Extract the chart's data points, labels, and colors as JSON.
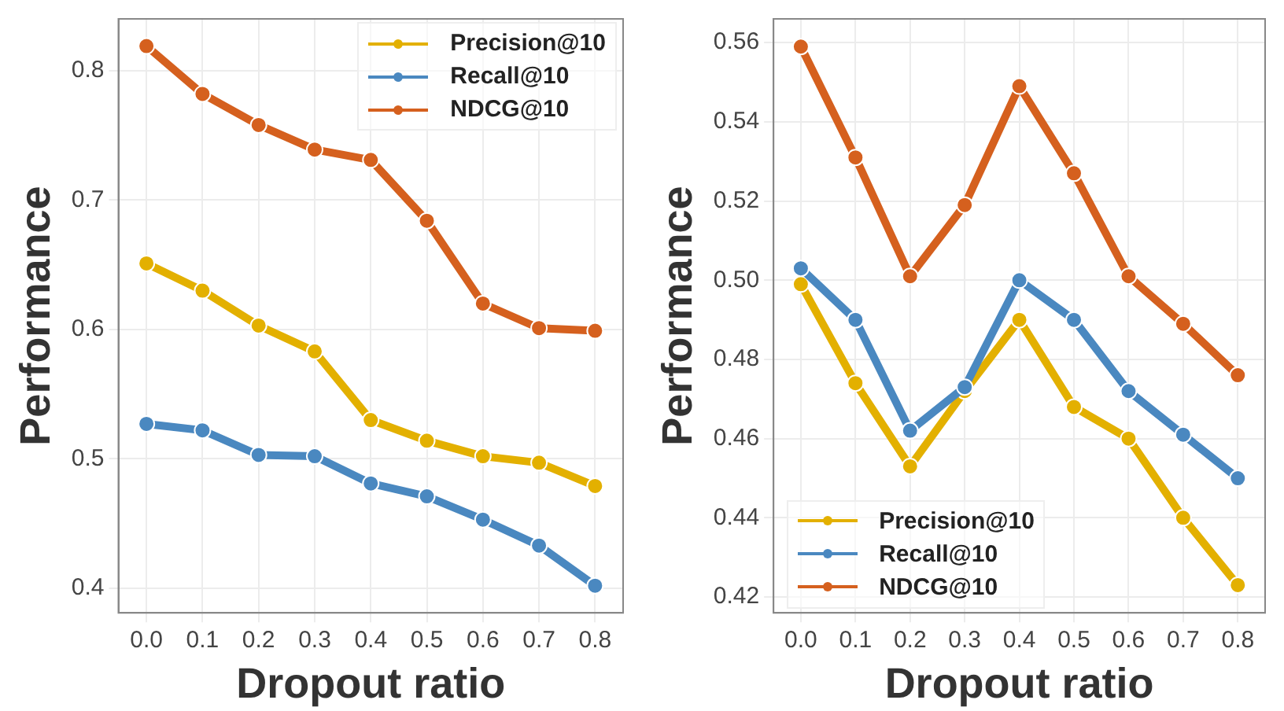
{
  "chart_data": [
    {
      "type": "line",
      "xlabel": "Dropout ratio",
      "ylabel": "Performance",
      "categories": [
        "0.0",
        "0.1",
        "0.2",
        "0.3",
        "0.4",
        "0.5",
        "0.6",
        "0.7",
        "0.8"
      ],
      "series": [
        {
          "name": "Precision@10",
          "color": "#e3b000",
          "values": [
            0.651,
            0.63,
            0.603,
            0.583,
            0.53,
            0.514,
            0.502,
            0.497,
            0.479
          ]
        },
        {
          "name": "Recall@10",
          "color": "#4a88c0",
          "values": [
            0.527,
            0.522,
            0.503,
            0.502,
            0.481,
            0.471,
            0.453,
            0.433,
            0.402
          ]
        },
        {
          "name": "NDCG@10",
          "color": "#d5601e",
          "values": [
            0.819,
            0.782,
            0.758,
            0.739,
            0.731,
            0.684,
            0.62,
            0.601,
            0.599
          ]
        }
      ],
      "ylim": [
        0.381,
        0.84
      ],
      "yticks": [
        0.4,
        0.5,
        0.6,
        0.7,
        0.8
      ],
      "grid": true,
      "legend": "top right",
      "marker": "circle",
      "line_style": "solid"
    },
    {
      "type": "line",
      "xlabel": "Dropout ratio",
      "ylabel": "Performance",
      "categories": [
        "0.0",
        "0.1",
        "0.2",
        "0.3",
        "0.4",
        "0.5",
        "0.6",
        "0.7",
        "0.8"
      ],
      "series": [
        {
          "name": "Precision@10",
          "color": "#e3b000",
          "values": [
            0.499,
            0.474,
            0.453,
            0.472,
            0.49,
            0.468,
            0.46,
            0.44,
            0.423
          ]
        },
        {
          "name": "Recall@10",
          "color": "#4a88c0",
          "values": [
            0.503,
            0.49,
            0.462,
            0.473,
            0.5,
            0.49,
            0.472,
            0.461,
            0.45
          ]
        },
        {
          "name": "NDCG@10",
          "color": "#d5601e",
          "values": [
            0.559,
            0.531,
            0.501,
            0.519,
            0.549,
            0.527,
            0.501,
            0.489,
            0.476
          ]
        }
      ],
      "ylim": [
        0.416,
        0.566
      ],
      "yticks": [
        0.42,
        0.44,
        0.46,
        0.48,
        {
          "value": 0.5,
          "label": "0.50"
        },
        0.52,
        0.54,
        0.56
      ],
      "grid": true,
      "legend": "bottom left",
      "marker": "circle",
      "line_style": "solid"
    }
  ]
}
